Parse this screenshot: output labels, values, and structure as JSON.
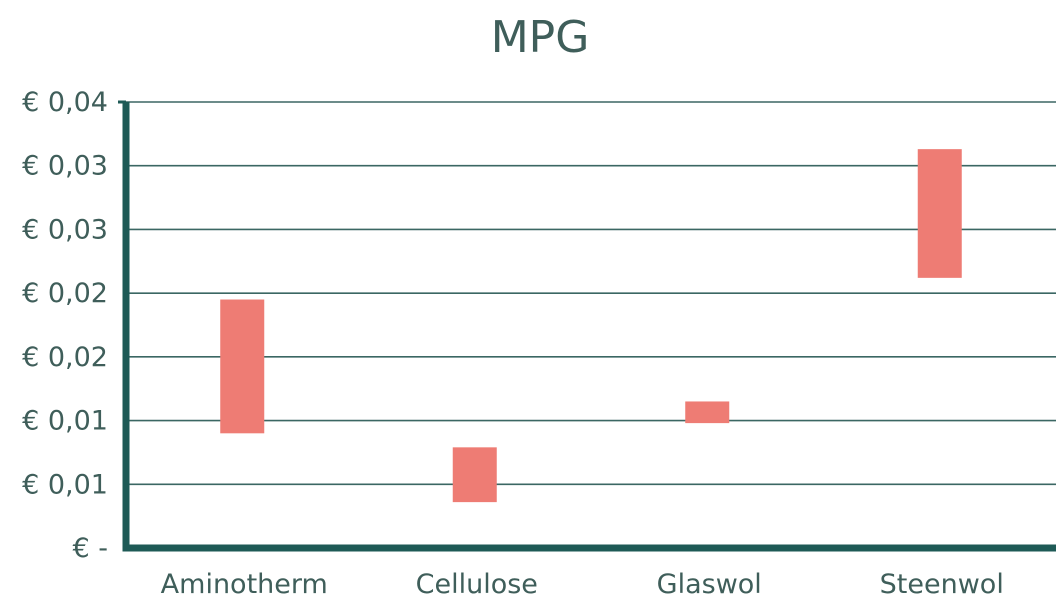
{
  "chart_data": {
    "type": "bar",
    "subtype": "floating-range",
    "title": "MPG",
    "xlabel": "",
    "ylabel": "",
    "categories": [
      "Aminotherm",
      "Cellulose",
      "Glaswol",
      "Steenwol"
    ],
    "ranges": [
      {
        "low": 0.009,
        "high": 0.0195
      },
      {
        "low": 0.0036,
        "high": 0.0079
      },
      {
        "low": 0.0098,
        "high": 0.0115
      },
      {
        "low": 0.0212,
        "high": 0.0313
      }
    ],
    "ylim": [
      0,
      0.035
    ],
    "yticks": [
      0,
      0.005,
      0.01,
      0.015,
      0.02,
      0.025,
      0.03,
      0.035
    ],
    "ytick_labels": [
      "€ -",
      "€ 0,01",
      "€ 0,01",
      "€ 0,02",
      "€ 0,02",
      "€ 0,03",
      "€ 0,03",
      "€ 0,04"
    ],
    "grid": true,
    "legend": false,
    "colors": {
      "bar": "#ee7c74",
      "axis": "#1e5a56",
      "grid": "#3b6763",
      "text": "#3f5e5a"
    }
  }
}
